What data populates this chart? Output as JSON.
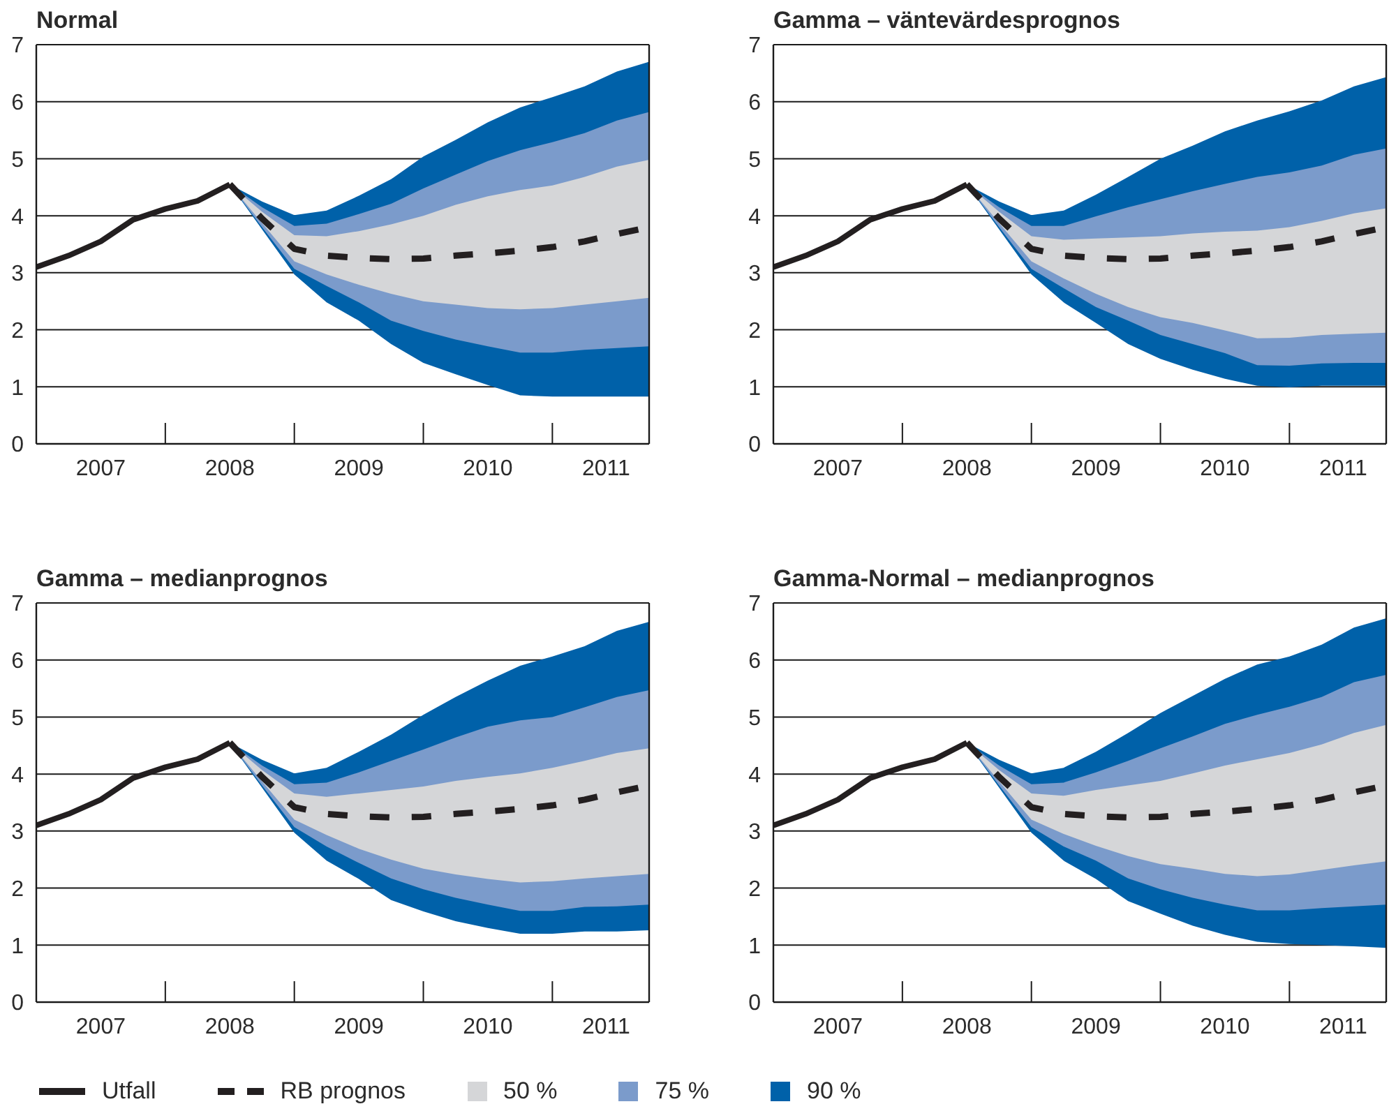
{
  "chart_data": [
    {
      "type": "line",
      "title": "Normal",
      "x": [
        "2007-01",
        "2007-04",
        "2007-07",
        "2007-10",
        "2008-01",
        "2008-04",
        "2008-07",
        "2008-10",
        "2009-01",
        "2009-04",
        "2009-07",
        "2009-10",
        "2010-01",
        "2010-04",
        "2010-07",
        "2010-10",
        "2011-01",
        "2011-04",
        "2011-07",
        "2011-10"
      ],
      "xlim": [
        "2007-01",
        "2011-10"
      ],
      "xticks": [
        {
          "value": "2007-07",
          "label": "2007"
        },
        {
          "value": "2008-01",
          "label": null
        },
        {
          "value": "2008-07",
          "label": "2008"
        },
        {
          "value": "2009-01",
          "label": null
        },
        {
          "value": "2009-07",
          "label": "2009"
        },
        {
          "value": "2010-01",
          "label": null
        },
        {
          "value": "2010-07",
          "label": "2010"
        },
        {
          "value": "2011-01",
          "label": null
        },
        {
          "value": "2011-06",
          "label": "2011"
        }
      ],
      "ylim": [
        0,
        7
      ],
      "yticks": [
        0,
        1,
        2,
        3,
        4,
        5,
        6,
        7
      ],
      "grid": "y",
      "series": [
        {
          "type": "line",
          "color": "#231f20",
          "values": [
            3.1,
            3.3,
            3.55,
            3.93,
            4.12,
            4.26,
            4.55,
            null,
            null,
            null,
            null,
            null,
            null,
            null,
            null,
            null,
            null,
            null,
            null,
            null
          ]
        },
        {
          "type": "line",
          "color": "#231f20",
          "line_style": "dashed",
          "values": [
            null,
            null,
            null,
            null,
            null,
            null,
            4.55,
            3.95,
            3.42,
            3.3,
            3.26,
            3.24,
            3.25,
            3.3,
            3.34,
            3.39,
            3.45,
            3.55,
            3.68,
            3.8
          ]
        },
        {
          "type": "area",
          "color": "#d5d6d8",
          "values": [
            null,
            null,
            null,
            null,
            null,
            null,
            null,
            null,
            null,
            null,
            null,
            null,
            null,
            null,
            null,
            null,
            null,
            null,
            null,
            null
          ],
          "lower": [
            null,
            null,
            null,
            null,
            null,
            null,
            4.55,
            3.87,
            3.2,
            2.97,
            2.79,
            2.63,
            2.5,
            2.44,
            2.38,
            2.36,
            2.38,
            2.44,
            2.5,
            2.56
          ],
          "upper": [
            null,
            null,
            null,
            null,
            null,
            null,
            4.55,
            4.07,
            3.66,
            3.64,
            3.73,
            3.85,
            4.0,
            4.19,
            4.34,
            4.45,
            4.53,
            4.68,
            4.86,
            4.98
          ]
        },
        {
          "type": "area",
          "color": "#7b9bcb",
          "values": [
            null,
            null,
            null,
            null,
            null,
            null,
            null,
            null,
            null,
            null,
            null,
            null,
            null,
            null,
            null,
            null,
            null,
            null,
            null,
            null
          ],
          "lower": [
            null,
            null,
            null,
            null,
            null,
            null,
            4.55,
            3.8,
            3.07,
            2.77,
            2.48,
            2.16,
            1.98,
            1.83,
            1.71,
            1.6,
            1.6,
            1.65,
            1.68,
            1.71
          ],
          "upper": [
            null,
            null,
            null,
            null,
            null,
            null,
            4.55,
            4.15,
            3.82,
            3.86,
            4.03,
            4.21,
            4.48,
            4.72,
            4.96,
            5.15,
            5.29,
            5.45,
            5.67,
            5.82
          ]
        },
        {
          "type": "area",
          "color": "#0061a9",
          "values": [
            null,
            null,
            null,
            null,
            null,
            null,
            null,
            null,
            null,
            null,
            null,
            null,
            null,
            null,
            null,
            null,
            null,
            null,
            null,
            null
          ],
          "lower": [
            null,
            null,
            null,
            null,
            null,
            null,
            4.55,
            3.76,
            2.97,
            2.48,
            2.16,
            1.75,
            1.42,
            1.22,
            1.03,
            0.85,
            0.83,
            0.83,
            0.83,
            0.83
          ],
          "upper": [
            null,
            null,
            null,
            null,
            null,
            null,
            4.55,
            4.25,
            4.01,
            4.09,
            4.35,
            4.64,
            5.04,
            5.33,
            5.64,
            5.9,
            6.08,
            6.27,
            6.53,
            6.7
          ]
        }
      ]
    },
    {
      "type": "line",
      "title": "Gamma – väntevärdesprognos",
      "x": [
        "2007-01",
        "2007-04",
        "2007-07",
        "2007-10",
        "2008-01",
        "2008-04",
        "2008-07",
        "2008-10",
        "2009-01",
        "2009-04",
        "2009-07",
        "2009-10",
        "2010-01",
        "2010-04",
        "2010-07",
        "2010-10",
        "2011-01",
        "2011-04",
        "2011-07",
        "2011-10"
      ],
      "xlim": [
        "2007-01",
        "2011-10"
      ],
      "xticks": [
        {
          "value": "2007-07",
          "label": "2007"
        },
        {
          "value": "2008-01",
          "label": null
        },
        {
          "value": "2008-07",
          "label": "2008"
        },
        {
          "value": "2009-01",
          "label": null
        },
        {
          "value": "2009-07",
          "label": "2009"
        },
        {
          "value": "2010-01",
          "label": null
        },
        {
          "value": "2010-07",
          "label": "2010"
        },
        {
          "value": "2011-01",
          "label": null
        },
        {
          "value": "2011-06",
          "label": "2011"
        }
      ],
      "ylim": [
        0,
        7
      ],
      "yticks": [
        0,
        1,
        2,
        3,
        4,
        5,
        6,
        7
      ],
      "grid": "y",
      "series": [
        {
          "type": "line",
          "color": "#231f20",
          "values": [
            3.1,
            3.3,
            3.55,
            3.93,
            4.12,
            4.26,
            4.55,
            null,
            null,
            null,
            null,
            null,
            null,
            null,
            null,
            null,
            null,
            null,
            null,
            null
          ]
        },
        {
          "type": "line",
          "color": "#231f20",
          "line_style": "dashed",
          "values": [
            null,
            null,
            null,
            null,
            null,
            null,
            4.55,
            3.95,
            3.42,
            3.3,
            3.26,
            3.24,
            3.25,
            3.3,
            3.34,
            3.39,
            3.45,
            3.55,
            3.68,
            3.8
          ]
        },
        {
          "type": "area",
          "color": "#d5d6d8",
          "values": [
            null,
            null,
            null,
            null,
            null,
            null,
            null,
            null,
            null,
            null,
            null,
            null,
            null,
            null,
            null,
            null,
            null,
            null,
            null,
            null
          ],
          "lower": [
            null,
            null,
            null,
            null,
            null,
            null,
            4.55,
            3.87,
            3.2,
            2.9,
            2.63,
            2.4,
            2.22,
            2.12,
            1.99,
            1.85,
            1.86,
            1.91,
            1.93,
            1.95
          ],
          "upper": [
            null,
            null,
            null,
            null,
            null,
            null,
            4.55,
            4.07,
            3.64,
            3.58,
            3.6,
            3.62,
            3.64,
            3.69,
            3.72,
            3.74,
            3.8,
            3.91,
            4.04,
            4.13
          ]
        },
        {
          "type": "area",
          "color": "#7b9bcb",
          "values": [
            null,
            null,
            null,
            null,
            null,
            null,
            null,
            null,
            null,
            null,
            null,
            null,
            null,
            null,
            null,
            null,
            null,
            null,
            null,
            null
          ],
          "lower": [
            null,
            null,
            null,
            null,
            null,
            null,
            4.55,
            3.8,
            3.07,
            2.73,
            2.4,
            2.16,
            1.91,
            1.75,
            1.59,
            1.38,
            1.37,
            1.41,
            1.42,
            1.42
          ],
          "upper": [
            null,
            null,
            null,
            null,
            null,
            null,
            4.55,
            4.15,
            3.82,
            3.82,
            3.99,
            4.15,
            4.29,
            4.43,
            4.56,
            4.68,
            4.76,
            4.88,
            5.07,
            5.18
          ]
        },
        {
          "type": "area",
          "color": "#0061a9",
          "values": [
            null,
            null,
            null,
            null,
            null,
            null,
            null,
            null,
            null,
            null,
            null,
            null,
            null,
            null,
            null,
            null,
            null,
            null,
            null,
            null
          ],
          "lower": [
            null,
            null,
            null,
            null,
            null,
            null,
            4.55,
            3.76,
            2.97,
            2.48,
            2.12,
            1.75,
            1.49,
            1.3,
            1.14,
            1.02,
            0.99,
            1.02,
            1.02,
            1.02
          ],
          "upper": [
            null,
            null,
            null,
            null,
            null,
            null,
            4.55,
            4.25,
            4.01,
            4.09,
            4.37,
            4.68,
            5.0,
            5.23,
            5.48,
            5.67,
            5.83,
            6.02,
            6.27,
            6.43
          ]
        }
      ]
    },
    {
      "type": "line",
      "title": "Gamma – medianprognos",
      "x": [
        "2007-01",
        "2007-04",
        "2007-07",
        "2007-10",
        "2008-01",
        "2008-04",
        "2008-07",
        "2008-10",
        "2009-01",
        "2009-04",
        "2009-07",
        "2009-10",
        "2010-01",
        "2010-04",
        "2010-07",
        "2010-10",
        "2011-01",
        "2011-04",
        "2011-07",
        "2011-10"
      ],
      "xlim": [
        "2007-01",
        "2011-10"
      ],
      "xticks": [
        {
          "value": "2007-07",
          "label": "2007"
        },
        {
          "value": "2008-01",
          "label": null
        },
        {
          "value": "2008-07",
          "label": "2008"
        },
        {
          "value": "2009-01",
          "label": null
        },
        {
          "value": "2009-07",
          "label": "2009"
        },
        {
          "value": "2010-01",
          "label": null
        },
        {
          "value": "2010-07",
          "label": "2010"
        },
        {
          "value": "2011-01",
          "label": null
        },
        {
          "value": "2011-06",
          "label": "2011"
        }
      ],
      "ylim": [
        0,
        7
      ],
      "yticks": [
        0,
        1,
        2,
        3,
        4,
        5,
        6,
        7
      ],
      "grid": "y",
      "legend": "bottom",
      "series": [
        {
          "name": "Utfall",
          "type": "line",
          "color": "#231f20",
          "values": [
            3.1,
            3.3,
            3.55,
            3.93,
            4.12,
            4.26,
            4.55,
            null,
            null,
            null,
            null,
            null,
            null,
            null,
            null,
            null,
            null,
            null,
            null,
            null
          ]
        },
        {
          "name": "RB prognos",
          "type": "line",
          "color": "#231f20",
          "line_style": "dashed",
          "values": [
            null,
            null,
            null,
            null,
            null,
            null,
            4.55,
            3.95,
            3.42,
            3.3,
            3.26,
            3.24,
            3.25,
            3.3,
            3.34,
            3.39,
            3.45,
            3.55,
            3.68,
            3.8
          ]
        },
        {
          "name": "50 %",
          "type": "area",
          "color": "#d5d6d8",
          "values": [
            null,
            null,
            null,
            null,
            null,
            null,
            null,
            null,
            null,
            null,
            null,
            null,
            null,
            null,
            null,
            null,
            null,
            null,
            null,
            null
          ],
          "lower": [
            null,
            null,
            null,
            null,
            null,
            null,
            4.55,
            3.87,
            3.2,
            2.93,
            2.69,
            2.5,
            2.34,
            2.24,
            2.16,
            2.1,
            2.12,
            2.17,
            2.21,
            2.25
          ],
          "upper": [
            null,
            null,
            null,
            null,
            null,
            null,
            4.55,
            4.07,
            3.66,
            3.6,
            3.66,
            3.72,
            3.78,
            3.88,
            3.95,
            4.01,
            4.11,
            4.23,
            4.37,
            4.45
          ]
        },
        {
          "name": "75 %",
          "type": "area",
          "color": "#7b9bcb",
          "values": [
            null,
            null,
            null,
            null,
            null,
            null,
            null,
            null,
            null,
            null,
            null,
            null,
            null,
            null,
            null,
            null,
            null,
            null,
            null,
            null
          ],
          "lower": [
            null,
            null,
            null,
            null,
            null,
            null,
            4.55,
            3.8,
            3.07,
            2.73,
            2.44,
            2.17,
            1.98,
            1.83,
            1.71,
            1.6,
            1.6,
            1.67,
            1.68,
            1.71
          ],
          "upper": [
            null,
            null,
            null,
            null,
            null,
            null,
            4.55,
            4.15,
            3.82,
            3.85,
            4.03,
            4.23,
            4.43,
            4.64,
            4.83,
            4.94,
            5.0,
            5.17,
            5.35,
            5.47
          ]
        },
        {
          "name": "90 %",
          "type": "area",
          "color": "#0061a9",
          "values": [
            null,
            null,
            null,
            null,
            null,
            null,
            null,
            null,
            null,
            null,
            null,
            null,
            null,
            null,
            null,
            null,
            null,
            null,
            null,
            null
          ],
          "lower": [
            null,
            null,
            null,
            null,
            null,
            null,
            4.55,
            3.76,
            2.97,
            2.48,
            2.16,
            1.79,
            1.59,
            1.42,
            1.3,
            1.2,
            1.2,
            1.24,
            1.24,
            1.26
          ],
          "upper": [
            null,
            null,
            null,
            null,
            null,
            null,
            4.55,
            4.25,
            4.01,
            4.11,
            4.39,
            4.69,
            5.04,
            5.35,
            5.64,
            5.9,
            6.06,
            6.24,
            6.51,
            6.67
          ]
        }
      ]
    },
    {
      "type": "line",
      "title": "Gamma-Normal – medianprognos",
      "x": [
        "2007-01",
        "2007-04",
        "2007-07",
        "2007-10",
        "2008-01",
        "2008-04",
        "2008-07",
        "2008-10",
        "2009-01",
        "2009-04",
        "2009-07",
        "2009-10",
        "2010-01",
        "2010-04",
        "2010-07",
        "2010-10",
        "2011-01",
        "2011-04",
        "2011-07",
        "2011-10"
      ],
      "xlim": [
        "2007-01",
        "2011-10"
      ],
      "xticks": [
        {
          "value": "2007-07",
          "label": "2007"
        },
        {
          "value": "2008-01",
          "label": null
        },
        {
          "value": "2008-07",
          "label": "2008"
        },
        {
          "value": "2009-01",
          "label": null
        },
        {
          "value": "2009-07",
          "label": "2009"
        },
        {
          "value": "2010-01",
          "label": null
        },
        {
          "value": "2010-07",
          "label": "2010"
        },
        {
          "value": "2011-01",
          "label": null
        },
        {
          "value": "2011-06",
          "label": "2011"
        }
      ],
      "ylim": [
        0,
        7
      ],
      "yticks": [
        0,
        1,
        2,
        3,
        4,
        5,
        6,
        7
      ],
      "grid": "y",
      "series": [
        {
          "type": "line",
          "color": "#231f20",
          "values": [
            3.1,
            3.3,
            3.55,
            3.93,
            4.12,
            4.26,
            4.55,
            null,
            null,
            null,
            null,
            null,
            null,
            null,
            null,
            null,
            null,
            null,
            null,
            null
          ]
        },
        {
          "type": "line",
          "color": "#231f20",
          "line_style": "dashed",
          "values": [
            null,
            null,
            null,
            null,
            null,
            null,
            4.55,
            3.95,
            3.42,
            3.3,
            3.26,
            3.24,
            3.25,
            3.3,
            3.34,
            3.39,
            3.45,
            3.55,
            3.68,
            3.8
          ]
        },
        {
          "type": "area",
          "color": "#d5d6d8",
          "values": [
            null,
            null,
            null,
            null,
            null,
            null,
            null,
            null,
            null,
            null,
            null,
            null,
            null,
            null,
            null,
            null,
            null,
            null,
            null,
            null
          ],
          "lower": [
            null,
            null,
            null,
            null,
            null,
            null,
            4.55,
            3.87,
            3.2,
            2.95,
            2.74,
            2.56,
            2.42,
            2.34,
            2.25,
            2.21,
            2.24,
            2.32,
            2.4,
            2.47
          ],
          "upper": [
            null,
            null,
            null,
            null,
            null,
            null,
            4.55,
            4.07,
            3.66,
            3.62,
            3.72,
            3.8,
            3.88,
            4.01,
            4.15,
            4.26,
            4.37,
            4.52,
            4.72,
            4.86
          ]
        },
        {
          "type": "area",
          "color": "#7b9bcb",
          "values": [
            null,
            null,
            null,
            null,
            null,
            null,
            null,
            null,
            null,
            null,
            null,
            null,
            null,
            null,
            null,
            null,
            null,
            null,
            null,
            null
          ],
          "lower": [
            null,
            null,
            null,
            null,
            null,
            null,
            4.55,
            3.8,
            3.07,
            2.73,
            2.48,
            2.17,
            1.98,
            1.83,
            1.71,
            1.61,
            1.61,
            1.65,
            1.68,
            1.71
          ],
          "upper": [
            null,
            null,
            null,
            null,
            null,
            null,
            4.55,
            4.15,
            3.82,
            3.85,
            4.03,
            4.23,
            4.45,
            4.66,
            4.88,
            5.04,
            5.18,
            5.35,
            5.61,
            5.74
          ]
        },
        {
          "type": "area",
          "color": "#0061a9",
          "values": [
            null,
            null,
            null,
            null,
            null,
            null,
            null,
            null,
            null,
            null,
            null,
            null,
            null,
            null,
            null,
            null,
            null,
            null,
            null,
            null
          ],
          "lower": [
            null,
            null,
            null,
            null,
            null,
            null,
            4.55,
            3.76,
            2.97,
            2.48,
            2.16,
            1.77,
            1.55,
            1.34,
            1.18,
            1.06,
            1.02,
            1.0,
            0.98,
            0.95
          ],
          "upper": [
            null,
            null,
            null,
            null,
            null,
            null,
            4.55,
            4.25,
            4.01,
            4.11,
            4.39,
            4.72,
            5.07,
            5.37,
            5.67,
            5.92,
            6.06,
            6.27,
            6.57,
            6.73
          ]
        }
      ]
    }
  ]
}
